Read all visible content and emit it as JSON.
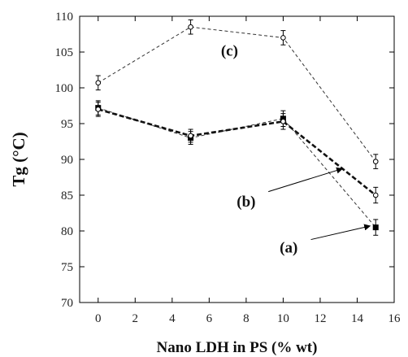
{
  "chart_data": {
    "type": "line",
    "xlabel": "Nano LDH in PS (% wt)",
    "ylabel": "Tg (°C)",
    "xlim": [
      -1,
      16
    ],
    "ylim": [
      70,
      110
    ],
    "xticks": [
      0,
      2,
      4,
      6,
      8,
      10,
      12,
      14,
      16
    ],
    "yticks": [
      70,
      75,
      80,
      85,
      90,
      95,
      100,
      105,
      110
    ],
    "grid": false,
    "series": [
      {
        "label": "(a)",
        "marker": "filled-square",
        "line": "light-dashed",
        "x": [
          0,
          5,
          10,
          15
        ],
        "y": [
          97.2,
          93.0,
          95.7,
          80.5
        ],
        "error": [
          1.0,
          0.9,
          1.1,
          1.1
        ]
      },
      {
        "label": "(b)",
        "marker": "open-circle",
        "line": "heavy-dashed",
        "x": [
          0,
          5,
          10,
          15
        ],
        "y": [
          97.0,
          93.3,
          95.3,
          85.0
        ],
        "error": [
          1.0,
          0.9,
          1.1,
          1.1
        ]
      },
      {
        "label": "(c)",
        "marker": "open-circle",
        "line": "light-dashed",
        "x": [
          0,
          5,
          10,
          15
        ],
        "y": [
          100.7,
          108.5,
          107.0,
          89.7
        ],
        "error": [
          1.0,
          1.0,
          1.0,
          1.0
        ]
      }
    ]
  }
}
